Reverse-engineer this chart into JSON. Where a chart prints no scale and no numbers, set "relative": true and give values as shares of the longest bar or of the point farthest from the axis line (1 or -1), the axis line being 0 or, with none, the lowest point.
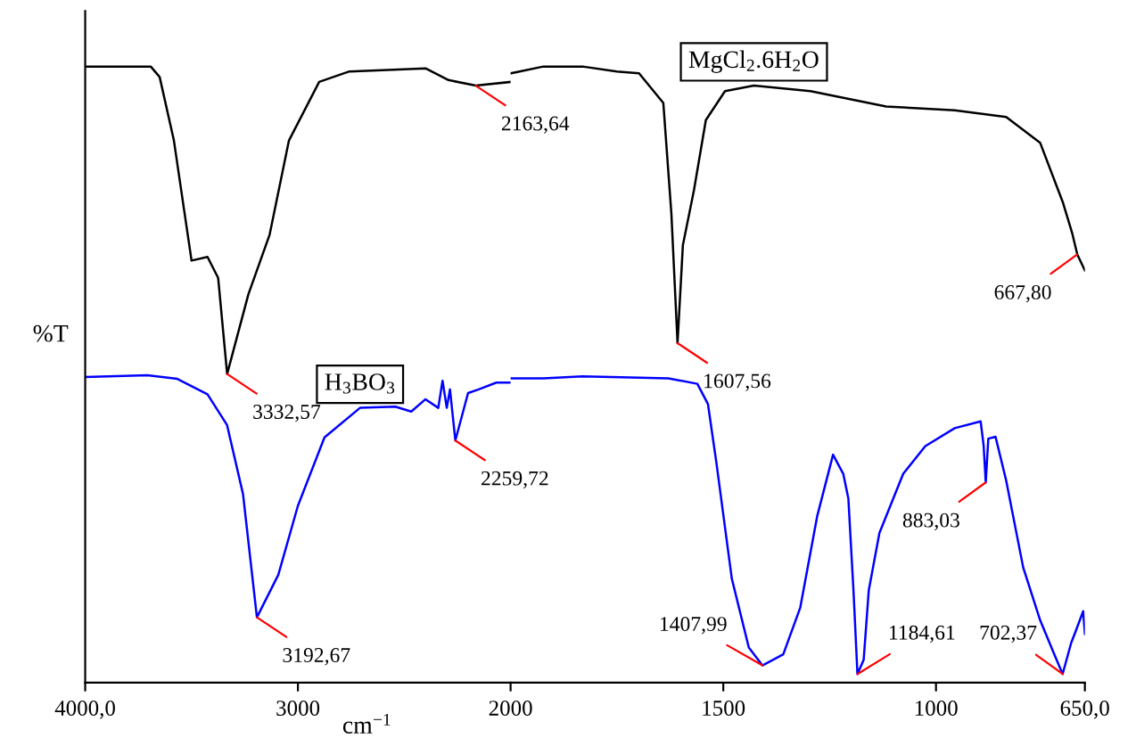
{
  "chart_data": [
    {
      "type": "line",
      "relative": true,
      "ylabel": "%T",
      "xlim": [
        4000,
        2000
      ],
      "xticks": [
        {
          "value": 4000,
          "label": "4000,0"
        },
        3000,
        2000
      ],
      "grid": false,
      "legend": false,
      "marker": "none",
      "line_style": "solid",
      "series": [
        {
          "color": "#000000",
          "x": [
            4000,
            3692,
            3650,
            3583,
            3500,
            3425,
            3375,
            3332.57,
            3233,
            3133,
            3042,
            2900,
            2758,
            2400,
            2292,
            2163.64,
            2000
          ],
          "values": [
            1.0,
            1.0,
            0.983,
            0.88,
            0.685,
            0.691,
            0.657,
            0.501,
            0.63,
            0.727,
            0.88,
            0.975,
            0.992,
            0.997,
            0.978,
            0.969,
            0.975
          ]
        },
        {
          "name": "H$_{3}$BO$_{3}$",
          "color": "#0000ff",
          "x": [
            4000,
            3708,
            3567,
            3425,
            3333,
            3258,
            3192.67,
            3092,
            3000,
            2875,
            2708,
            2542,
            2467,
            2400,
            2340,
            2320,
            2300,
            2285,
            2259.72,
            2200,
            2150,
            2067,
            2000
          ],
          "values": [
            0.496,
            0.499,
            0.493,
            0.468,
            0.418,
            0.306,
            0.106,
            0.175,
            0.287,
            0.398,
            0.446,
            0.448,
            0.44,
            0.46,
            0.446,
            0.49,
            0.446,
            0.476,
            0.393,
            0.47,
            0.476,
            0.487,
            0.487
          ]
        }
      ],
      "annotations": [
        {
          "text": "3332,57",
          "x": 3332.57,
          "y": 0.501
        },
        {
          "text": "2163,64",
          "x": 2163.64,
          "y": 0.969
        },
        {
          "text": "3192,67",
          "x": 3192.67,
          "y": 0.106
        },
        {
          "text": "2259,72",
          "x": 2259.72,
          "y": 0.393
        }
      ]
    },
    {
      "type": "line",
      "relative": true,
      "xlabel": "cm$^{−1}$",
      "xlim": [
        2000,
        650
      ],
      "xticks": [
        1500,
        1000,
        {
          "value": 650,
          "label": "650,0"
        }
      ],
      "grid": false,
      "legend": false,
      "marker": "none",
      "line_style": "solid",
      "tick_labels": "x",
      "series": [
        {
          "name": "MgCl$_{2}$.6H$_{2}$O",
          "color": "#000000",
          "x": [
            2000,
            1979,
            1923,
            1831,
            1750,
            1698,
            1641,
            1622,
            1607.56,
            1595,
            1569,
            1541,
            1496,
            1428,
            1295,
            1117,
            956,
            835,
            755,
            702,
            680,
            667.8,
            650
          ],
          "values": [
            0.989,
            0.992,
            1.0,
            1.0,
            0.992,
            0.989,
            0.941,
            0.761,
            0.551,
            0.71,
            0.799,
            0.913,
            0.96,
            0.969,
            0.96,
            0.935,
            0.929,
            0.918,
            0.876,
            0.78,
            0.73,
            0.695,
            0.669
          ]
        },
        {
          "color": "#0000ff",
          "x": [
            2000,
            1923,
            1831,
            1629,
            1561,
            1536,
            1516,
            1480,
            1440,
            1407.99,
            1359,
            1319,
            1279,
            1242,
            1218,
            1206,
            1194,
            1184.61,
            1170,
            1158,
            1133,
            1077,
            1025,
            956,
            895,
            888,
            883.03,
            877,
            860,
            835,
            795,
            755,
            722,
            702.37,
            682,
            674,
            654,
            650
          ],
          "values": [
            0.494,
            0.494,
            0.497,
            0.494,
            0.485,
            0.452,
            0.356,
            0.169,
            0.057,
            0.028,
            0.046,
            0.122,
            0.271,
            0.37,
            0.339,
            0.299,
            0.15,
            0.014,
            0.037,
            0.15,
            0.243,
            0.339,
            0.384,
            0.413,
            0.424,
            0.385,
            0.325,
            0.396,
            0.399,
            0.328,
            0.187,
            0.101,
            0.046,
            0.014,
            0.065,
            0.079,
            0.116,
            0.079
          ]
        }
      ],
      "annotations": [
        {
          "text": "1607,56",
          "x": 1607.56,
          "y": 0.551
        },
        {
          "text": "667,80",
          "x": 667.8,
          "y": 0.695
        },
        {
          "text": "1407,99",
          "x": 1407.99,
          "y": 0.028
        },
        {
          "text": "1184,61",
          "x": 1184.61,
          "y": 0.014
        },
        {
          "text": "883,03",
          "x": 883.03,
          "y": 0.325
        },
        {
          "text": "702,37",
          "x": 702.37,
          "y": 0.014
        }
      ]
    }
  ]
}
